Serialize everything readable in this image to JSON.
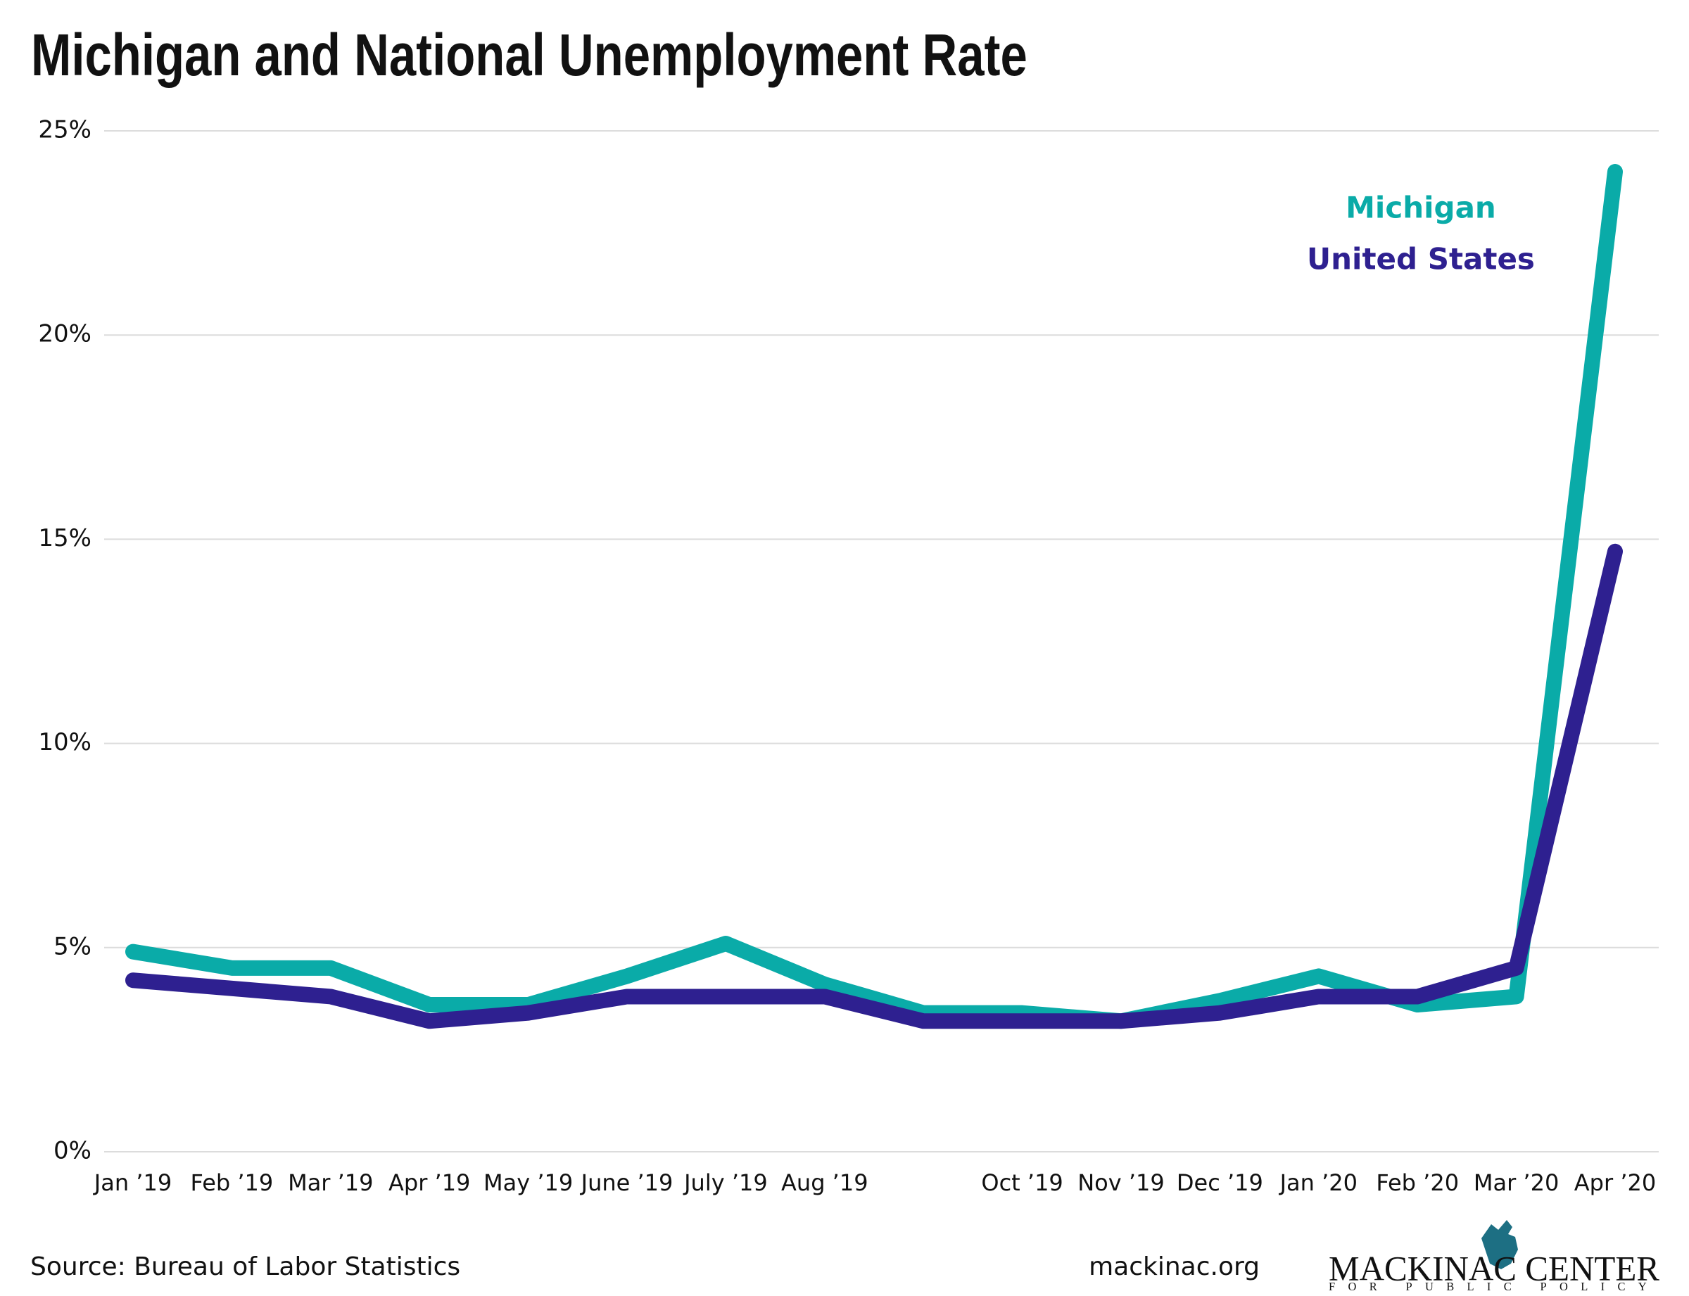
{
  "chart_data": {
    "type": "line",
    "title": "Michigan and National Unemployment Rate",
    "categories": [
      "Jan ’19",
      "Feb ’19",
      "Mar ’19",
      "Apr ’19",
      "May ’19",
      "June ’19",
      "July ’19",
      "Aug ’19",
      null,
      "Oct ’19",
      "Nov ’19",
      "Dec ’19",
      "Jan ’20",
      "Feb ’20",
      "Mar ’20",
      "Apr ’20"
    ],
    "series": [
      {
        "name": "Michigan",
        "color": "#0aaba8",
        "values": [
          4.9,
          4.5,
          4.5,
          3.6,
          3.6,
          4.3,
          5.1,
          4.1,
          3.4,
          3.4,
          3.2,
          3.7,
          4.3,
          3.6,
          3.8,
          24.0
        ]
      },
      {
        "name": "United States",
        "color": "#2e2090",
        "values": [
          4.2,
          4.0,
          3.8,
          3.2,
          3.4,
          3.8,
          3.8,
          3.8,
          3.2,
          3.2,
          3.2,
          3.4,
          3.8,
          3.8,
          4.5,
          14.7
        ]
      }
    ],
    "ylim": [
      0,
      25
    ],
    "yticks": [
      {
        "value": 0,
        "label": "0%"
      },
      {
        "value": 5,
        "label": "5%"
      },
      {
        "value": 10,
        "label": "10%"
      },
      {
        "value": 15,
        "label": "15%"
      },
      {
        "value": 20,
        "label": "20%"
      },
      {
        "value": 25,
        "label": "25%"
      }
    ],
    "grid": true,
    "source": "Source: Bureau of Labor Statistics",
    "website": "mackinac.org",
    "logo": {
      "name": "MACKINAC CENTER",
      "tagline": "FOR PUBLIC POLICY"
    }
  }
}
